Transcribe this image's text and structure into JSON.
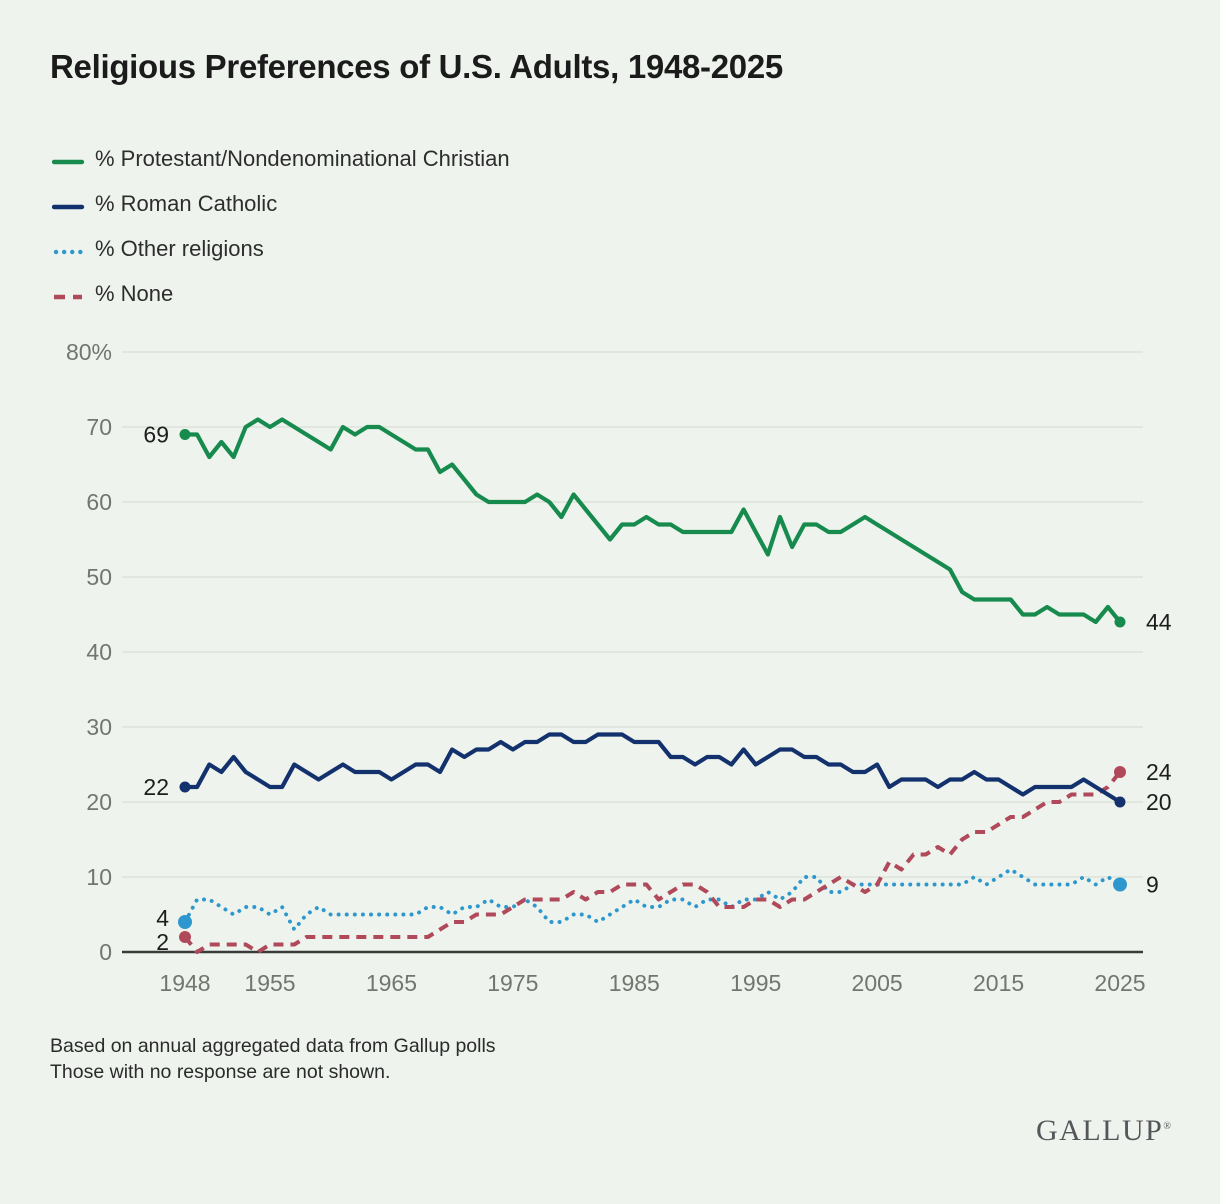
{
  "page": {
    "title": "Religious Preferences of U.S. Adults, 1948-2025",
    "footnote_line1": "Based on annual aggregated data from Gallup polls",
    "footnote_line2": "Those with no response are not shown.",
    "brand": "GALLUP",
    "brand_mark": "®"
  },
  "chart_data": {
    "type": "line",
    "title": "Religious Preferences of U.S. Adults, 1948-2025",
    "xlabel": "",
    "ylabel": "",
    "x_range": [
      1948,
      2025
    ],
    "x_ticks": [
      1948,
      1955,
      1965,
      1975,
      1985,
      1995,
      2005,
      2015,
      2025
    ],
    "y_ticks": [
      {
        "v": 0,
        "label": "0"
      },
      {
        "v": 10,
        "label": "10"
      },
      {
        "v": 20,
        "label": "20"
      },
      {
        "v": 30,
        "label": "30"
      },
      {
        "v": 40,
        "label": "40"
      },
      {
        "v": 50,
        "label": "50"
      },
      {
        "v": 60,
        "label": "60"
      },
      {
        "v": 70,
        "label": "70"
      },
      {
        "v": 80,
        "label": "80%"
      }
    ],
    "ylim": [
      0,
      80
    ],
    "grid": "horizontal",
    "legend_position": "top-left",
    "colors": {
      "background": "#eef4ed",
      "grid": "#d9ded7",
      "axis": "#3a3a3a",
      "tick_text": "#71766f",
      "label_text": "#1d1d1d"
    },
    "series": [
      {
        "name": "% Protestant/Nondenominational Christian",
        "key": "protestant",
        "color": "#178a4d",
        "style": "solid",
        "z": 4,
        "dot_r": 5.5,
        "start_label": "69",
        "end_label": "44",
        "start_dy": 0,
        "values": [
          69,
          69,
          66,
          68,
          66,
          70,
          71,
          70,
          71,
          70,
          69,
          68,
          67,
          70,
          69,
          70,
          70,
          69,
          68,
          67,
          67,
          64,
          65,
          63,
          61,
          60,
          60,
          60,
          60,
          61,
          60,
          58,
          61,
          59,
          57,
          55,
          57,
          57,
          58,
          57,
          57,
          56,
          56,
          56,
          56,
          56,
          59,
          56,
          53,
          58,
          54,
          57,
          57,
          56,
          56,
          57,
          58,
          57,
          56,
          55,
          54,
          53,
          52,
          51,
          48,
          47,
          47,
          47,
          47,
          45,
          45,
          46,
          45,
          45,
          45,
          44,
          46,
          44
        ]
      },
      {
        "name": "% Roman Catholic",
        "key": "catholic",
        "color": "#13316d",
        "style": "solid",
        "z": 3,
        "dot_r": 5.5,
        "start_label": "22",
        "end_label": "20",
        "start_dy": 0,
        "values": [
          22,
          22,
          25,
          24,
          26,
          24,
          23,
          22,
          22,
          25,
          24,
          23,
          24,
          25,
          24,
          24,
          24,
          23,
          24,
          25,
          25,
          24,
          27,
          26,
          27,
          27,
          28,
          27,
          28,
          28,
          29,
          29,
          28,
          28,
          29,
          29,
          29,
          28,
          28,
          28,
          26,
          26,
          25,
          26,
          26,
          25,
          27,
          25,
          26,
          27,
          27,
          26,
          26,
          25,
          25,
          24,
          24,
          25,
          22,
          23,
          23,
          23,
          22,
          23,
          23,
          24,
          23,
          23,
          22,
          21,
          22,
          22,
          22,
          22,
          23,
          22,
          21,
          20
        ]
      },
      {
        "name": "% Other religions",
        "key": "other",
        "color": "#2e97cd",
        "style": "dotted",
        "z": 1,
        "dot_r": 7,
        "start_label": "4",
        "end_label": "9",
        "start_dy": -4,
        "values": [
          4,
          7,
          7,
          6,
          5,
          6,
          6,
          5,
          6,
          3,
          5,
          6,
          5,
          5,
          5,
          5,
          5,
          5,
          5,
          5,
          6,
          6,
          5,
          6,
          6,
          7,
          6,
          6,
          7,
          6,
          4,
          4,
          5,
          5,
          4,
          5,
          6,
          7,
          6,
          6,
          7,
          7,
          6,
          7,
          7,
          6,
          7,
          7,
          8,
          7,
          8,
          10,
          10,
          8,
          8,
          9,
          9,
          9,
          9,
          9,
          9,
          9,
          9,
          9,
          9,
          10,
          9,
          10,
          11,
          10,
          9,
          9,
          9,
          9,
          10,
          9,
          10,
          9
        ]
      },
      {
        "name": "% None",
        "key": "none",
        "color": "#b0495a",
        "style": "dashed",
        "z": 2,
        "dot_r": 6,
        "start_label": "2",
        "end_label": "24",
        "start_dy": 5,
        "values": [
          2,
          0,
          1,
          1,
          1,
          1,
          0,
          1,
          1,
          1,
          2,
          2,
          2,
          2,
          2,
          2,
          2,
          2,
          2,
          2,
          2,
          3,
          4,
          4,
          5,
          5,
          5,
          6,
          7,
          7,
          7,
          7,
          8,
          7,
          8,
          8,
          9,
          9,
          9,
          7,
          8,
          9,
          9,
          8,
          6,
          6,
          6,
          7,
          7,
          6,
          7,
          7,
          8,
          9,
          10,
          9,
          8,
          9,
          12,
          11,
          13,
          13,
          14,
          13,
          15,
          16,
          16,
          17,
          18,
          18,
          19,
          20,
          20,
          21,
          21,
          21,
          22,
          24
        ]
      }
    ]
  }
}
